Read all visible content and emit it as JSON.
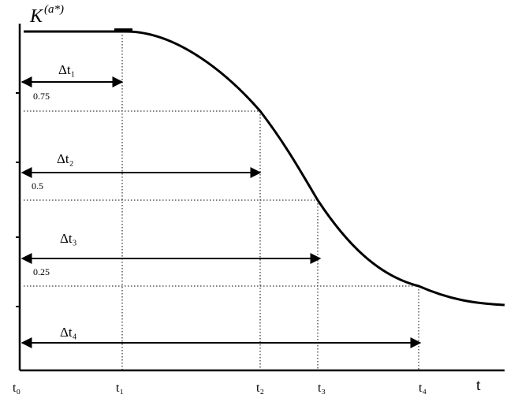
{
  "diagram": {
    "y_axis_label": "K",
    "y_axis_superscript": "(a*)",
    "x_axis_label": "t",
    "time_ticks": [
      "t₀",
      "t₁",
      "t₂",
      "t₃",
      "t₄"
    ],
    "levels": [
      "0.75",
      "0.5",
      "0.25"
    ],
    "intervals": [
      "Δt₁",
      "Δt₂",
      "Δt₃",
      "Δt₄"
    ]
  }
}
